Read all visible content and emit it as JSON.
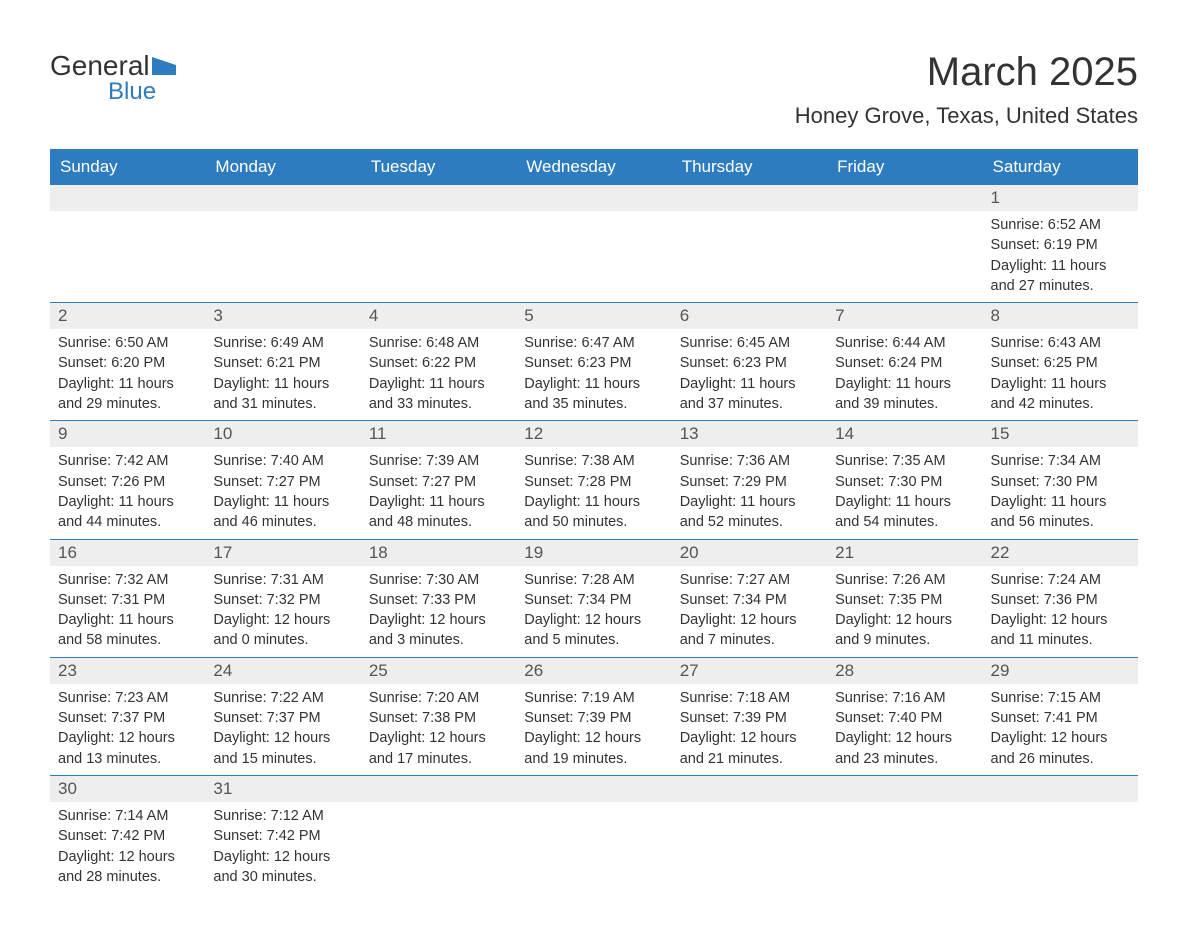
{
  "logo": {
    "text1": "General",
    "text2": "Blue",
    "icon_color": "#2e7cc0",
    "text1_color": "#333333",
    "text2_color": "#2e7cc0"
  },
  "title": "March 2025",
  "location": "Honey Grove, Texas, United States",
  "colors": {
    "header_bg": "#2e7cc0",
    "header_text": "#ffffff",
    "day_number_bg": "#eeeeee",
    "text": "#333333",
    "border": "#2e7cc0"
  },
  "day_names": [
    "Sunday",
    "Monday",
    "Tuesday",
    "Wednesday",
    "Thursday",
    "Friday",
    "Saturday"
  ],
  "weeks": [
    [
      {
        "day": "",
        "sunrise": "",
        "sunset": "",
        "daylight": ""
      },
      {
        "day": "",
        "sunrise": "",
        "sunset": "",
        "daylight": ""
      },
      {
        "day": "",
        "sunrise": "",
        "sunset": "",
        "daylight": ""
      },
      {
        "day": "",
        "sunrise": "",
        "sunset": "",
        "daylight": ""
      },
      {
        "day": "",
        "sunrise": "",
        "sunset": "",
        "daylight": ""
      },
      {
        "day": "",
        "sunrise": "",
        "sunset": "",
        "daylight": ""
      },
      {
        "day": "1",
        "sunrise": "Sunrise: 6:52 AM",
        "sunset": "Sunset: 6:19 PM",
        "daylight": "Daylight: 11 hours and 27 minutes."
      }
    ],
    [
      {
        "day": "2",
        "sunrise": "Sunrise: 6:50 AM",
        "sunset": "Sunset: 6:20 PM",
        "daylight": "Daylight: 11 hours and 29 minutes."
      },
      {
        "day": "3",
        "sunrise": "Sunrise: 6:49 AM",
        "sunset": "Sunset: 6:21 PM",
        "daylight": "Daylight: 11 hours and 31 minutes."
      },
      {
        "day": "4",
        "sunrise": "Sunrise: 6:48 AM",
        "sunset": "Sunset: 6:22 PM",
        "daylight": "Daylight: 11 hours and 33 minutes."
      },
      {
        "day": "5",
        "sunrise": "Sunrise: 6:47 AM",
        "sunset": "Sunset: 6:23 PM",
        "daylight": "Daylight: 11 hours and 35 minutes."
      },
      {
        "day": "6",
        "sunrise": "Sunrise: 6:45 AM",
        "sunset": "Sunset: 6:23 PM",
        "daylight": "Daylight: 11 hours and 37 minutes."
      },
      {
        "day": "7",
        "sunrise": "Sunrise: 6:44 AM",
        "sunset": "Sunset: 6:24 PM",
        "daylight": "Daylight: 11 hours and 39 minutes."
      },
      {
        "day": "8",
        "sunrise": "Sunrise: 6:43 AM",
        "sunset": "Sunset: 6:25 PM",
        "daylight": "Daylight: 11 hours and 42 minutes."
      }
    ],
    [
      {
        "day": "9",
        "sunrise": "Sunrise: 7:42 AM",
        "sunset": "Sunset: 7:26 PM",
        "daylight": "Daylight: 11 hours and 44 minutes."
      },
      {
        "day": "10",
        "sunrise": "Sunrise: 7:40 AM",
        "sunset": "Sunset: 7:27 PM",
        "daylight": "Daylight: 11 hours and 46 minutes."
      },
      {
        "day": "11",
        "sunrise": "Sunrise: 7:39 AM",
        "sunset": "Sunset: 7:27 PM",
        "daylight": "Daylight: 11 hours and 48 minutes."
      },
      {
        "day": "12",
        "sunrise": "Sunrise: 7:38 AM",
        "sunset": "Sunset: 7:28 PM",
        "daylight": "Daylight: 11 hours and 50 minutes."
      },
      {
        "day": "13",
        "sunrise": "Sunrise: 7:36 AM",
        "sunset": "Sunset: 7:29 PM",
        "daylight": "Daylight: 11 hours and 52 minutes."
      },
      {
        "day": "14",
        "sunrise": "Sunrise: 7:35 AM",
        "sunset": "Sunset: 7:30 PM",
        "daylight": "Daylight: 11 hours and 54 minutes."
      },
      {
        "day": "15",
        "sunrise": "Sunrise: 7:34 AM",
        "sunset": "Sunset: 7:30 PM",
        "daylight": "Daylight: 11 hours and 56 minutes."
      }
    ],
    [
      {
        "day": "16",
        "sunrise": "Sunrise: 7:32 AM",
        "sunset": "Sunset: 7:31 PM",
        "daylight": "Daylight: 11 hours and 58 minutes."
      },
      {
        "day": "17",
        "sunrise": "Sunrise: 7:31 AM",
        "sunset": "Sunset: 7:32 PM",
        "daylight": "Daylight: 12 hours and 0 minutes."
      },
      {
        "day": "18",
        "sunrise": "Sunrise: 7:30 AM",
        "sunset": "Sunset: 7:33 PM",
        "daylight": "Daylight: 12 hours and 3 minutes."
      },
      {
        "day": "19",
        "sunrise": "Sunrise: 7:28 AM",
        "sunset": "Sunset: 7:34 PM",
        "daylight": "Daylight: 12 hours and 5 minutes."
      },
      {
        "day": "20",
        "sunrise": "Sunrise: 7:27 AM",
        "sunset": "Sunset: 7:34 PM",
        "daylight": "Daylight: 12 hours and 7 minutes."
      },
      {
        "day": "21",
        "sunrise": "Sunrise: 7:26 AM",
        "sunset": "Sunset: 7:35 PM",
        "daylight": "Daylight: 12 hours and 9 minutes."
      },
      {
        "day": "22",
        "sunrise": "Sunrise: 7:24 AM",
        "sunset": "Sunset: 7:36 PM",
        "daylight": "Daylight: 12 hours and 11 minutes."
      }
    ],
    [
      {
        "day": "23",
        "sunrise": "Sunrise: 7:23 AM",
        "sunset": "Sunset: 7:37 PM",
        "daylight": "Daylight: 12 hours and 13 minutes."
      },
      {
        "day": "24",
        "sunrise": "Sunrise: 7:22 AM",
        "sunset": "Sunset: 7:37 PM",
        "daylight": "Daylight: 12 hours and 15 minutes."
      },
      {
        "day": "25",
        "sunrise": "Sunrise: 7:20 AM",
        "sunset": "Sunset: 7:38 PM",
        "daylight": "Daylight: 12 hours and 17 minutes."
      },
      {
        "day": "26",
        "sunrise": "Sunrise: 7:19 AM",
        "sunset": "Sunset: 7:39 PM",
        "daylight": "Daylight: 12 hours and 19 minutes."
      },
      {
        "day": "27",
        "sunrise": "Sunrise: 7:18 AM",
        "sunset": "Sunset: 7:39 PM",
        "daylight": "Daylight: 12 hours and 21 minutes."
      },
      {
        "day": "28",
        "sunrise": "Sunrise: 7:16 AM",
        "sunset": "Sunset: 7:40 PM",
        "daylight": "Daylight: 12 hours and 23 minutes."
      },
      {
        "day": "29",
        "sunrise": "Sunrise: 7:15 AM",
        "sunset": "Sunset: 7:41 PM",
        "daylight": "Daylight: 12 hours and 26 minutes."
      }
    ],
    [
      {
        "day": "30",
        "sunrise": "Sunrise: 7:14 AM",
        "sunset": "Sunset: 7:42 PM",
        "daylight": "Daylight: 12 hours and 28 minutes."
      },
      {
        "day": "31",
        "sunrise": "Sunrise: 7:12 AM",
        "sunset": "Sunset: 7:42 PM",
        "daylight": "Daylight: 12 hours and 30 minutes."
      },
      {
        "day": "",
        "sunrise": "",
        "sunset": "",
        "daylight": ""
      },
      {
        "day": "",
        "sunrise": "",
        "sunset": "",
        "daylight": ""
      },
      {
        "day": "",
        "sunrise": "",
        "sunset": "",
        "daylight": ""
      },
      {
        "day": "",
        "sunrise": "",
        "sunset": "",
        "daylight": ""
      },
      {
        "day": "",
        "sunrise": "",
        "sunset": "",
        "daylight": ""
      }
    ]
  ]
}
